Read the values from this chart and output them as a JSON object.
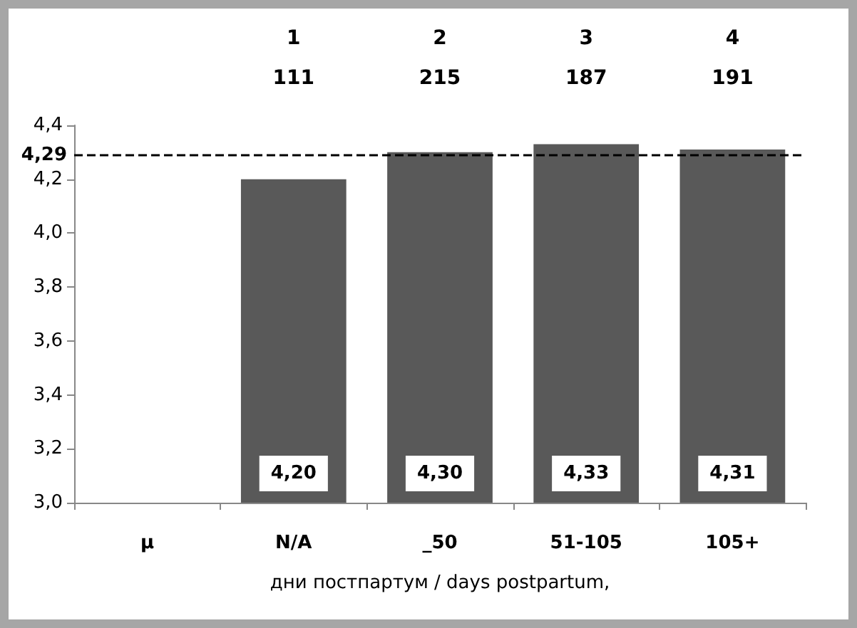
{
  "chart_data": {
    "type": "bar",
    "xlabel": "дни постпартум / days postpartum,",
    "categories": [
      "μ",
      "N/A",
      "_50",
      "51-105",
      "105+"
    ],
    "values": [
      null,
      4.2,
      4.3,
      4.33,
      4.31
    ],
    "value_labels": [
      null,
      "4,20",
      "4,30",
      "4,33",
      "4,31"
    ],
    "color": "#595959",
    "ylim": [
      3.0,
      4.4
    ],
    "yticks": [
      {
        "value": 3.0,
        "label": "3,0"
      },
      {
        "value": 3.2,
        "label": "3,2"
      },
      {
        "value": 3.4,
        "label": "3,4"
      },
      {
        "value": 3.6,
        "label": "3,6"
      },
      {
        "value": 3.8,
        "label": "3,8"
      },
      {
        "value": 4.0,
        "label": "4,0"
      },
      {
        "value": 4.2,
        "label": "4,2"
      },
      {
        "value": 4.4,
        "label": "4,4"
      }
    ],
    "ref_lines": [
      {
        "axis": "y",
        "value": 4.29,
        "label": "4,29",
        "color": "#000000",
        "line_style": "dashed"
      }
    ],
    "annotations": [
      "1",
      "111",
      "2",
      "215",
      "3",
      "187",
      "4",
      "191"
    ],
    "grid": false
  }
}
